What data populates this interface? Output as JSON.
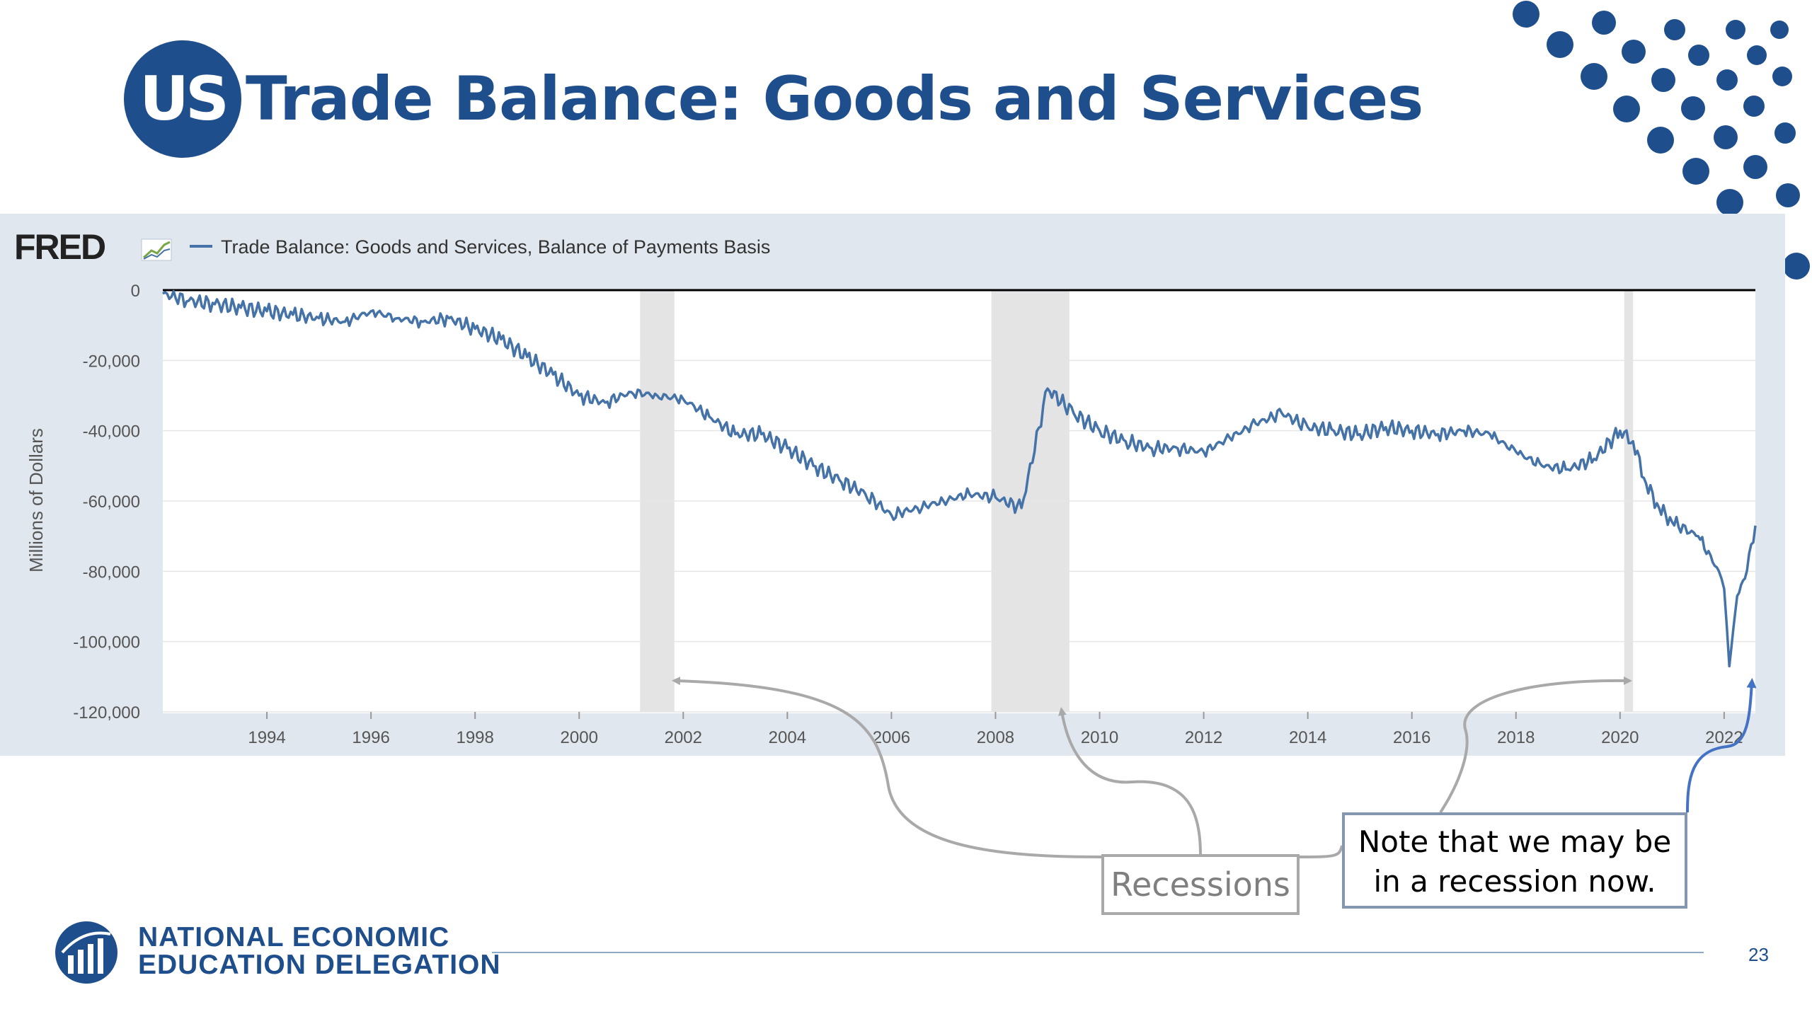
{
  "slide": {
    "title_badge": "US",
    "title": "Trade Balance: Goods and Services",
    "page_number": "23",
    "brand_color": "#1f4e8c"
  },
  "footer": {
    "org_line1": "NATIONAL ECONOMIC",
    "org_line2": "EDUCATION DELEGATION"
  },
  "annotations": {
    "recessions": "Recessions",
    "note_line1": "Note that we may be",
    "note_line2": "in a recession now."
  },
  "chart_data": {
    "type": "line",
    "source_logo": "FRED",
    "series": [
      {
        "name": "Trade Balance: Goods and Services, Balance of Payments Basis",
        "color": "#4572a7",
        "x": [
          1992.0,
          1992.5,
          1993.0,
          1993.5,
          1994.0,
          1994.5,
          1995.0,
          1995.5,
          1996.0,
          1996.5,
          1997.0,
          1997.5,
          1998.0,
          1998.5,
          1999.0,
          1999.5,
          2000.0,
          2000.5,
          2001.0,
          2001.5,
          2002.0,
          2002.5,
          2003.0,
          2003.5,
          2004.0,
          2004.5,
          2005.0,
          2005.5,
          2006.0,
          2006.5,
          2007.0,
          2007.5,
          2008.0,
          2008.5,
          2009.0,
          2009.5,
          2010.0,
          2010.5,
          2011.0,
          2011.5,
          2012.0,
          2012.5,
          2013.0,
          2013.5,
          2014.0,
          2014.5,
          2015.0,
          2015.5,
          2016.0,
          2016.5,
          2017.0,
          2017.5,
          2018.0,
          2018.5,
          2019.0,
          2019.5,
          2020.0,
          2020.25,
          2020.5,
          2020.75,
          2021.0,
          2021.5,
          2021.9,
          2022.0,
          2022.1,
          2022.25,
          2022.4,
          2022.6
        ],
        "y": [
          -1000,
          -3000,
          -4000,
          -5000,
          -6000,
          -7000,
          -8000,
          -9000,
          -6000,
          -8000,
          -9000,
          -8000,
          -11000,
          -14000,
          -19000,
          -24000,
          -30000,
          -32000,
          -29000,
          -30000,
          -31000,
          -36000,
          -41000,
          -41000,
          -45000,
          -50000,
          -54000,
          -58000,
          -64000,
          -62000,
          -60000,
          -58000,
          -59000,
          -62000,
          -28000,
          -35000,
          -40000,
          -43000,
          -45000,
          -45000,
          -46000,
          -42000,
          -38000,
          -35000,
          -39000,
          -40000,
          -41000,
          -39000,
          -40000,
          -41000,
          -40000,
          -41000,
          -46000,
          -50000,
          -51000,
          -48000,
          -40000,
          -43000,
          -55000,
          -62000,
          -66000,
          -70000,
          -80000,
          -85000,
          -107000,
          -87000,
          -82000,
          -67000
        ]
      }
    ],
    "ylabel": "Millions of Dollars",
    "ylim": [
      -120000,
      0
    ],
    "xlim": [
      1992.0,
      2022.6
    ],
    "yticks": [
      0,
      -20000,
      -40000,
      -60000,
      -80000,
      -100000,
      -120000
    ],
    "ytick_labels": [
      "0",
      "-20,000",
      "-40,000",
      "-60,000",
      "-80,000",
      "-100,000",
      "-120,000"
    ],
    "xticks": [
      1994,
      1996,
      1998,
      2000,
      2002,
      2004,
      2006,
      2008,
      2010,
      2012,
      2014,
      2016,
      2018,
      2020,
      2022
    ],
    "xtick_labels": [
      "1994",
      "1996",
      "1998",
      "2000",
      "2002",
      "2004",
      "2006",
      "2008",
      "2010",
      "2012",
      "2014",
      "2016",
      "2018",
      "2020",
      "2022"
    ],
    "recessions": [
      [
        2001.17,
        2001.83
      ],
      [
        2007.92,
        2009.42
      ],
      [
        2020.08,
        2020.25
      ]
    ],
    "grid": true,
    "legend": "top-left"
  }
}
